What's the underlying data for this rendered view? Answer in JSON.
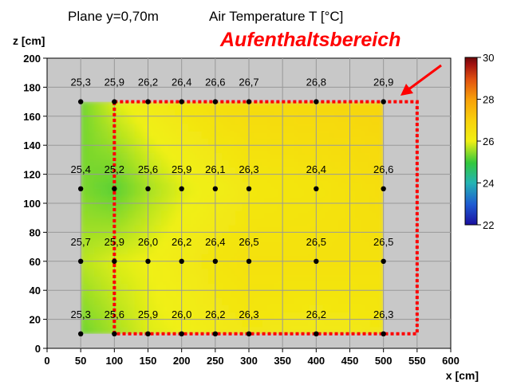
{
  "chart_data": {
    "type": "heatmap",
    "title": "Plane y=0,70m",
    "subtitle": "Air Temperature T  [°C]",
    "xlabel": "x [cm]",
    "ylabel": "z [cm]",
    "annotation": "Aufenthaltsbereich",
    "xlim": [
      0,
      600
    ],
    "ylim": [
      0,
      200
    ],
    "x_ticks": [
      0,
      50,
      100,
      150,
      200,
      250,
      300,
      350,
      400,
      450,
      500,
      550,
      600
    ],
    "y_ticks": [
      0,
      20,
      40,
      60,
      80,
      100,
      120,
      140,
      160,
      180,
      200
    ],
    "grid": true,
    "colorbar": {
      "min": 22,
      "max": 30,
      "ticks": [
        22,
        24,
        26,
        28,
        30
      ]
    },
    "measurement_x": [
      50,
      100,
      150,
      200,
      250,
      300,
      400,
      500
    ],
    "rows": [
      {
        "z": 170,
        "labels": [
          "25,3",
          "25,9",
          "26,2",
          "26,4",
          "26,6",
          "26,7",
          "26,8",
          "26,9"
        ]
      },
      {
        "z": 110,
        "labels": [
          "25,4",
          "25,2",
          "25,6",
          "25,9",
          "26,1",
          "26,3",
          "26,4",
          "26,6"
        ]
      },
      {
        "z": 60,
        "labels": [
          "25,7",
          "25,9",
          "26,0",
          "26,2",
          "26,4",
          "26,5",
          "26,5",
          "26,5"
        ]
      },
      {
        "z": 10,
        "labels": [
          "25,3",
          "25,6",
          "25,9",
          "26,0",
          "26,2",
          "26,3",
          "26,2",
          "26,3"
        ]
      }
    ],
    "field_extent": {
      "x": [
        50,
        500
      ],
      "z": [
        10,
        170
      ]
    },
    "zone": {
      "x": [
        100,
        550
      ],
      "z": [
        10,
        170
      ]
    },
    "colors": {
      "plot_background": "#c8c8c8",
      "grid": "#999999",
      "zone": "#ff0000",
      "annotation": "#ff0000",
      "point": "#000000"
    }
  }
}
